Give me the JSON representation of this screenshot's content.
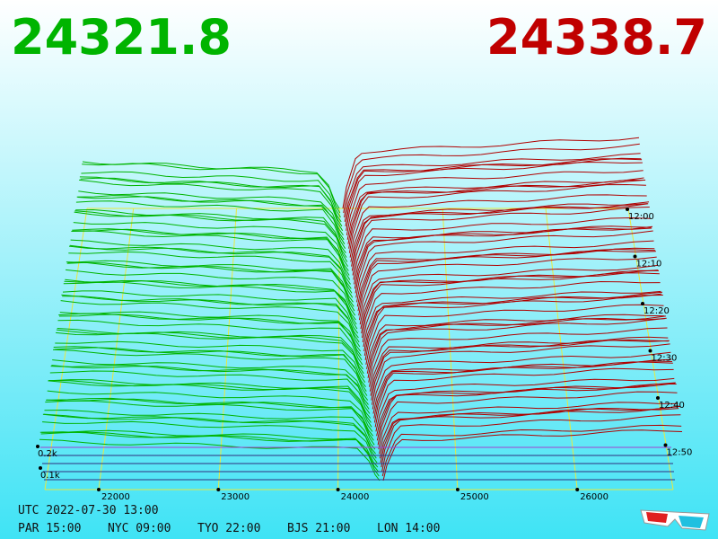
{
  "bid": 24321.8,
  "ask": 24338.7,
  "price_ticks": [
    22000,
    23000,
    24000,
    25000,
    26000
  ],
  "volume_ticks": [
    "0.2k",
    "0.1k"
  ],
  "time_ticks": [
    "12:00",
    "12:10",
    "12:20",
    "12:30",
    "12:40",
    "12:50"
  ],
  "footer": {
    "utc": "UTC 2022-07-30 13:00",
    "clocks": [
      "PAR 15:00",
      "NYC 09:00",
      "TYO 22:00",
      "BJS 21:00",
      "LON 14:00"
    ]
  }
}
